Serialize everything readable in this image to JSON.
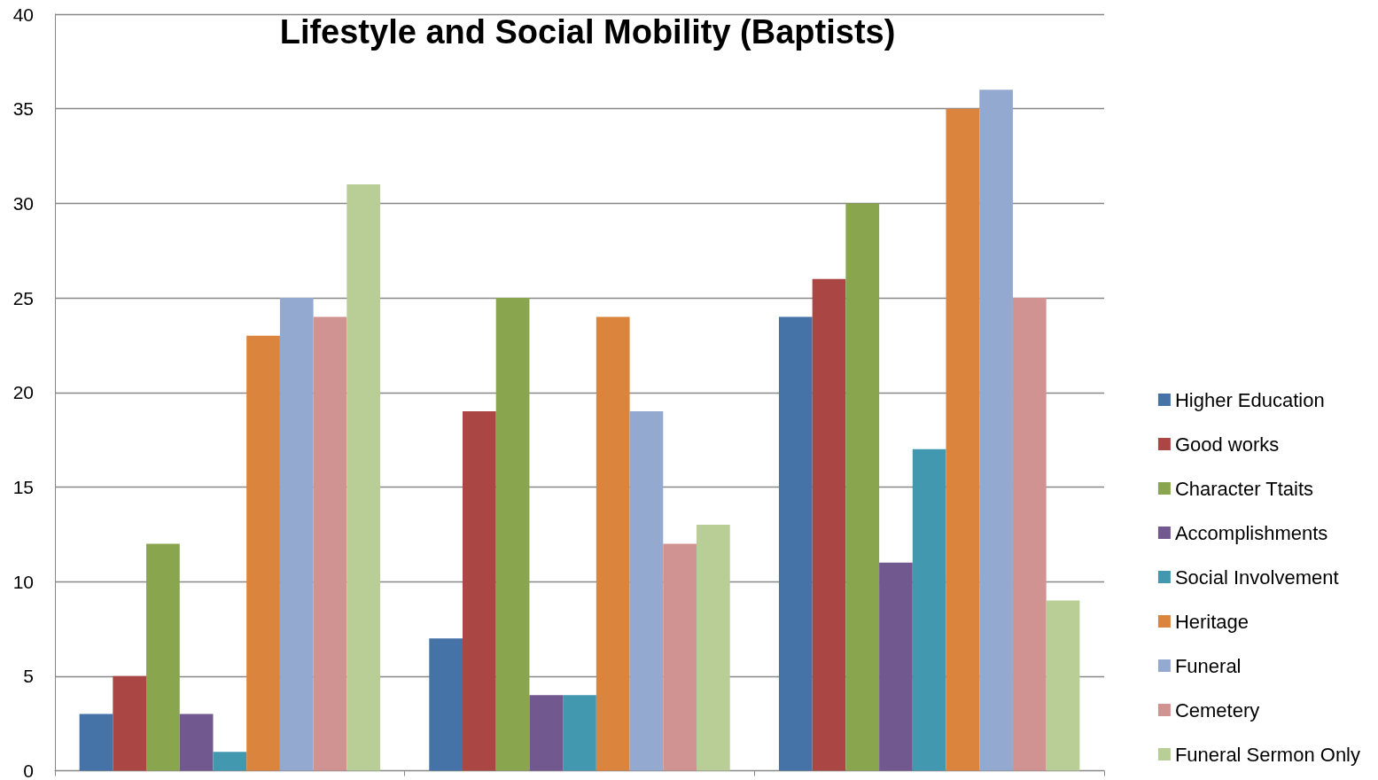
{
  "chart_data": {
    "type": "bar",
    "title": "Lifestyle and Social Mobility (Baptists)",
    "categories": [
      null,
      null,
      null
    ],
    "series": [
      {
        "name": "Higher Education",
        "color": "#4572a7",
        "values": [
          3,
          7,
          24
        ]
      },
      {
        "name": "Good works",
        "color": "#aa4643",
        "values": [
          5,
          19,
          26
        ]
      },
      {
        "name": "Character Ttaits",
        "color": "#89a54e",
        "values": [
          12,
          25,
          30
        ]
      },
      {
        "name": "Accomplishments",
        "color": "#71588f",
        "values": [
          3,
          4,
          11
        ]
      },
      {
        "name": "Social Involvement",
        "color": "#4198af",
        "values": [
          1,
          4,
          17
        ]
      },
      {
        "name": "Heritage",
        "color": "#db843d",
        "values": [
          23,
          24,
          35
        ]
      },
      {
        "name": "Funeral",
        "color": "#93a9cf",
        "values": [
          25,
          19,
          36
        ]
      },
      {
        "name": "Cemetery",
        "color": "#d19392",
        "values": [
          24,
          12,
          25
        ]
      },
      {
        "name": "Funeral Sermon Only",
        "color": "#b9cd96",
        "values": [
          31,
          13,
          9
        ]
      }
    ],
    "ylim": [
      0,
      40
    ],
    "yticks": [
      0,
      5,
      10,
      15,
      20,
      25,
      30,
      35,
      40
    ],
    "grid": "y",
    "legend": "right"
  }
}
